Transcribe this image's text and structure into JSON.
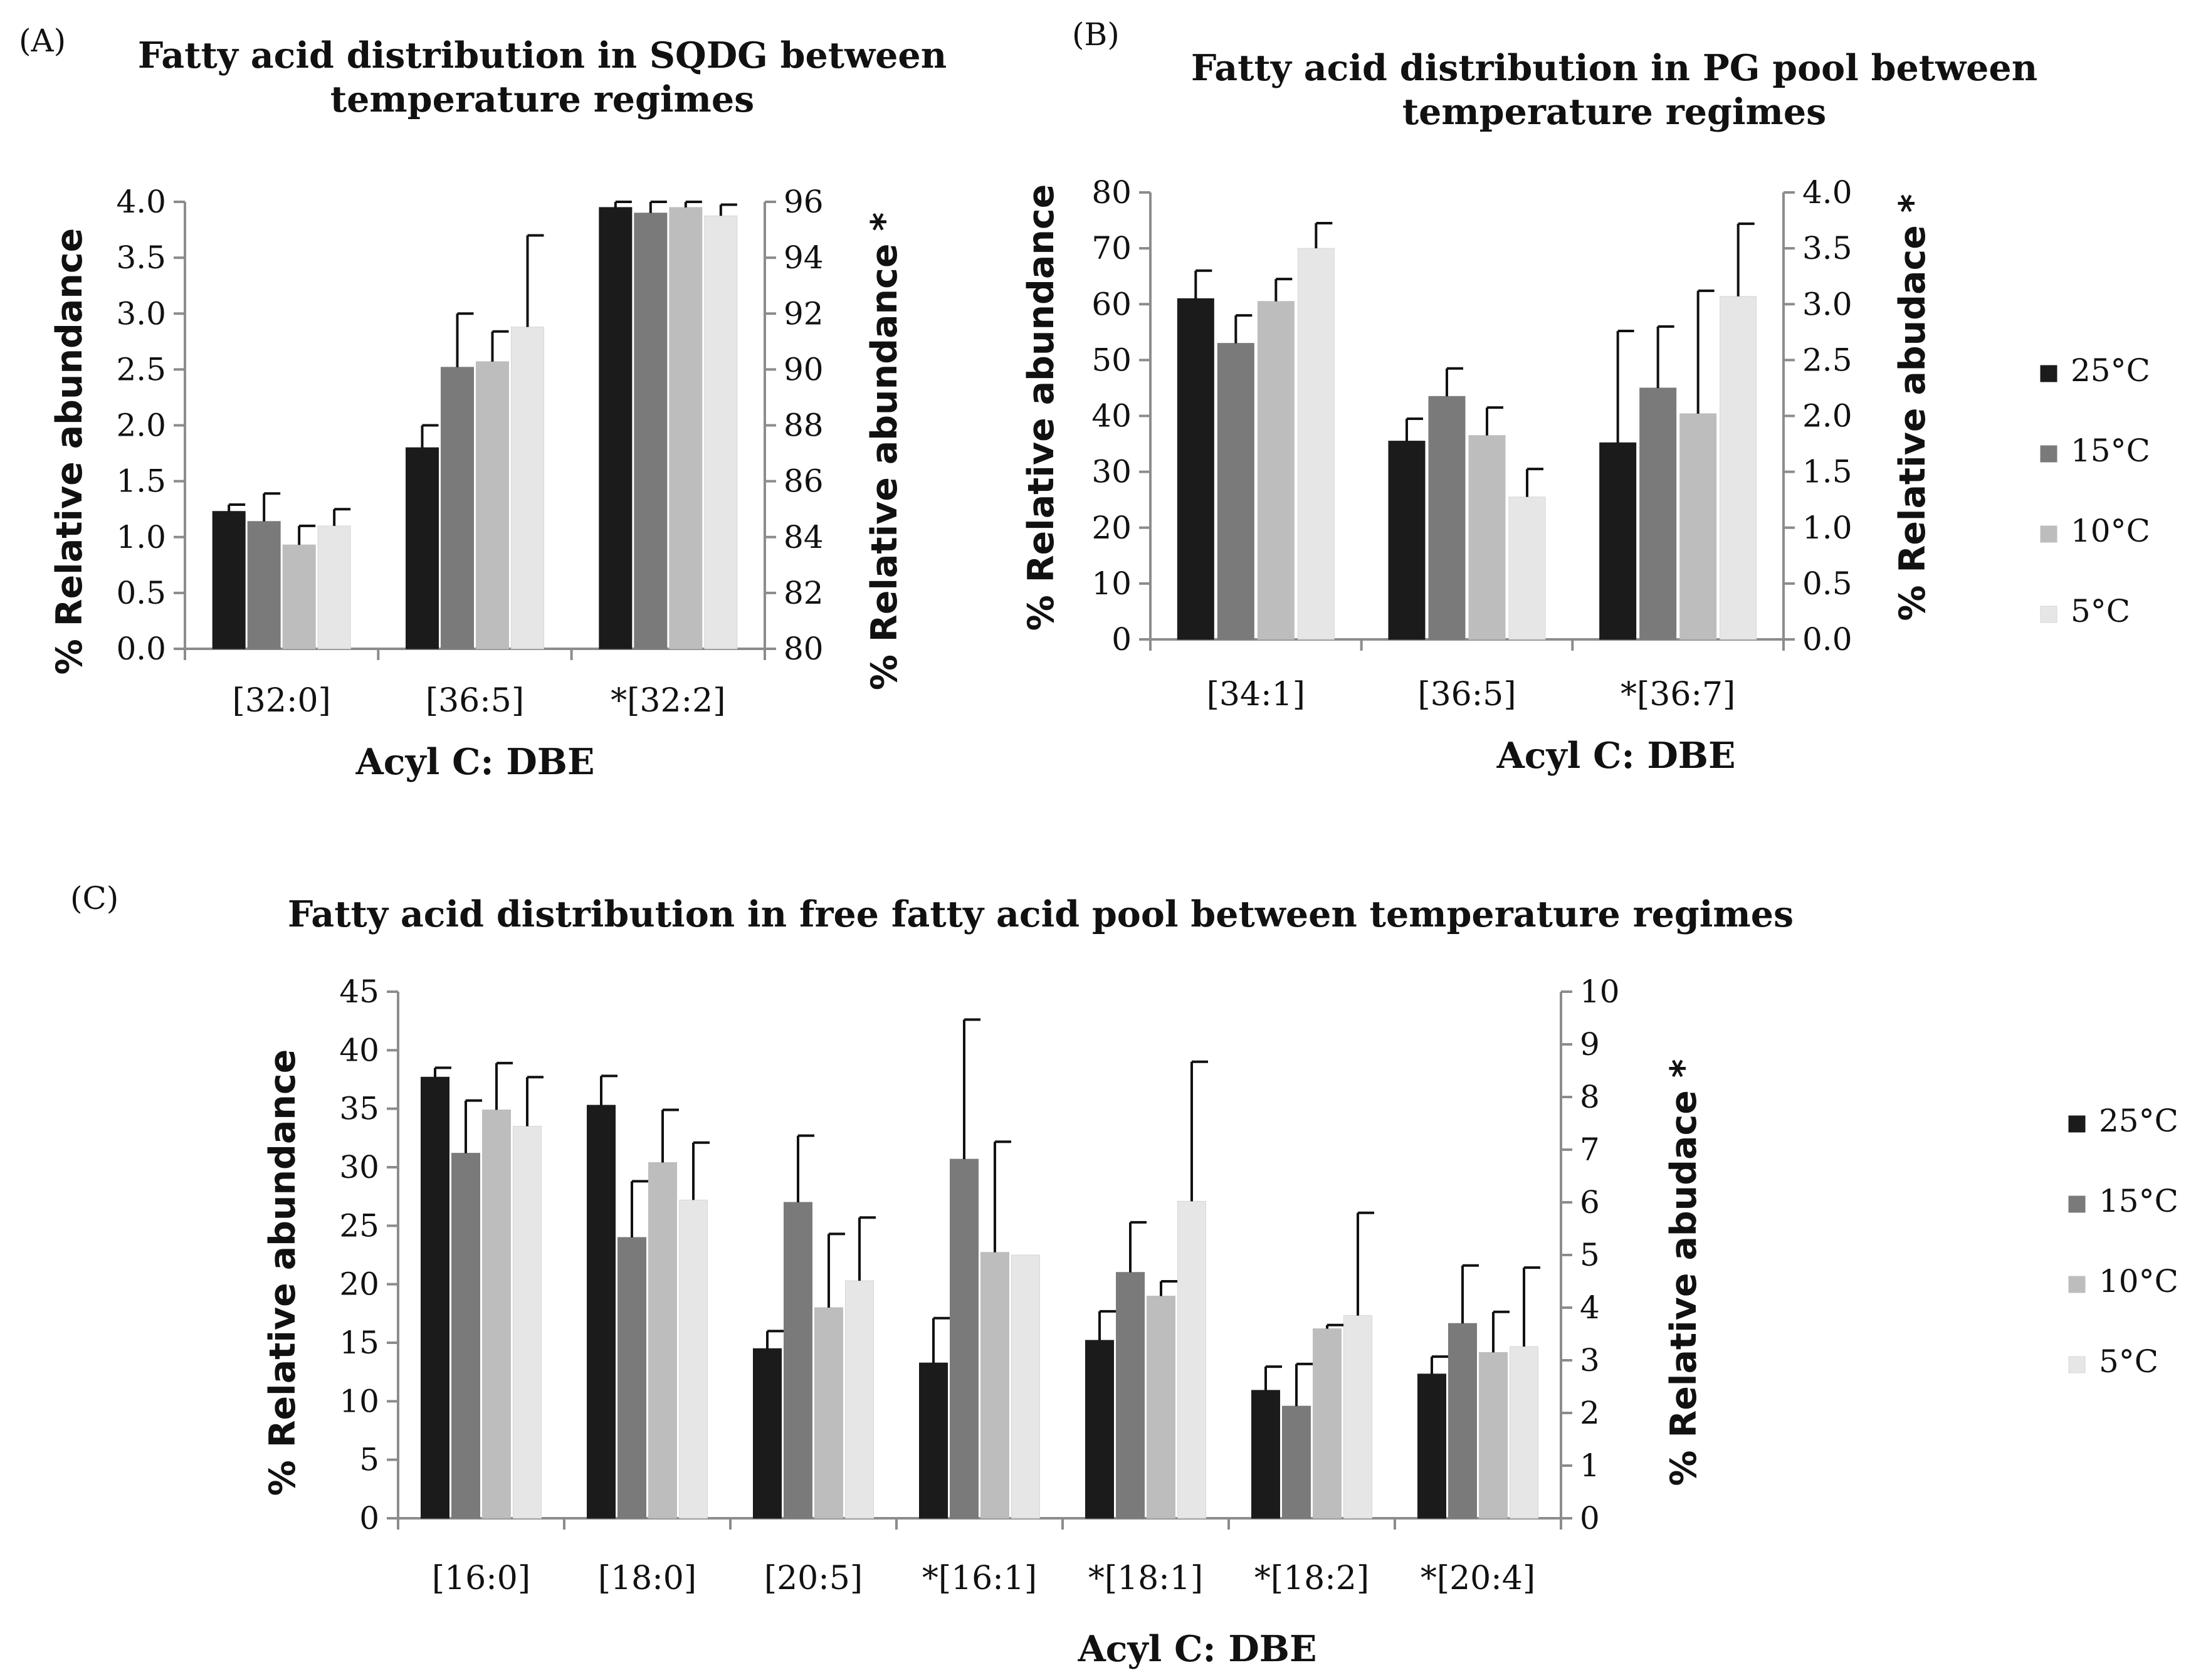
{
  "colors": {
    "25": "#1b1b1b",
    "15": "#7a7a7a",
    "10": "#bdbdbd",
    "5": "#e6e6e6",
    "axis": "#8c8c8c",
    "err": "#111111"
  },
  "chart_data": [
    {
      "id": "A",
      "panel_label": "(A)",
      "type": "bar",
      "title_lines": [
        "Fatty acid distribution in SQDG between",
        "temperature regimes"
      ],
      "xlabel": "Acyl C: DBE",
      "ylabel": "% Relative abundance",
      "ylabel_right": "% Relative abundance *",
      "ylim": [
        0,
        4.0
      ],
      "yticks": [
        "0.0",
        "0.5",
        "1.0",
        "1.5",
        "2.0",
        "2.5",
        "3.0",
        "3.5",
        "4.0"
      ],
      "ylim_right": [
        80,
        96
      ],
      "yticks_right": [
        "80",
        "82",
        "84",
        "86",
        "88",
        "90",
        "92",
        "94",
        "96"
      ],
      "categories": [
        "[32:0]",
        "[36:5]",
        "*[32:2]"
      ],
      "right_axis_categories": [
        2
      ],
      "series": [
        {
          "name": "25°C",
          "values": [
            1.23,
            1.8,
            95.8
          ],
          "errors": [
            0.06,
            0.2,
            0.2
          ]
        },
        {
          "name": "15°C",
          "values": [
            1.14,
            2.52,
            95.6
          ],
          "errors": [
            0.25,
            0.48,
            0.4
          ]
        },
        {
          "name": "10°C",
          "values": [
            0.93,
            2.57,
            95.8
          ],
          "errors": [
            0.17,
            0.27,
            0.2
          ]
        },
        {
          "name": "5°C",
          "values": [
            1.1,
            2.88,
            95.5
          ],
          "errors": [
            0.15,
            0.82,
            0.4
          ]
        }
      ]
    },
    {
      "id": "B",
      "panel_label": "(B)",
      "type": "bar",
      "title_lines": [
        "Fatty acid distribution in PG pool between",
        "temperature regimes"
      ],
      "xlabel": "Acyl C: DBE",
      "ylabel": "% Relative abundance",
      "ylabel_right": "% Relative abudace *",
      "ylim": [
        0,
        80
      ],
      "yticks": [
        "0",
        "10",
        "20",
        "30",
        "40",
        "50",
        "60",
        "70",
        "80"
      ],
      "ylim_right": [
        0,
        4.0
      ],
      "yticks_right": [
        "0.0",
        "0.5",
        "1.0",
        "1.5",
        "2.0",
        "2.5",
        "3.0",
        "3.5",
        "4.0"
      ],
      "categories": [
        "[34:1]",
        "[36:5]",
        "*[36:7]"
      ],
      "right_axis_categories": [
        2
      ],
      "series": [
        {
          "name": "25°C",
          "values": [
            61,
            35.5,
            1.76
          ],
          "errors": [
            5,
            4,
            1.0
          ]
        },
        {
          "name": "15°C",
          "values": [
            53,
            43.5,
            2.25
          ],
          "errors": [
            5,
            5,
            0.55
          ]
        },
        {
          "name": "10°C",
          "values": [
            60.5,
            36.5,
            2.02
          ],
          "errors": [
            4,
            5,
            1.1
          ]
        },
        {
          "name": "5°C",
          "values": [
            70,
            25.5,
            3.07
          ],
          "errors": [
            4.5,
            5,
            0.65
          ]
        }
      ]
    },
    {
      "id": "C",
      "panel_label": "(C)",
      "type": "bar",
      "title_lines": [
        "Fatty acid distribution in free fatty acid pool between temperature regimes"
      ],
      "xlabel": "Acyl C: DBE",
      "ylabel": "% Relative abundance",
      "ylabel_right": "% Relative abudace *",
      "ylim": [
        0,
        45
      ],
      "yticks": [
        "0",
        "5",
        "10",
        "15",
        "20",
        "25",
        "30",
        "35",
        "40",
        "45"
      ],
      "ylim_right": [
        0,
        10
      ],
      "yticks_right": [
        "0",
        "1",
        "2",
        "3",
        "4",
        "5",
        "6",
        "7",
        "8",
        "9",
        "10"
      ],
      "categories": [
        "[16:0]",
        "[18:0]",
        "[20:5]",
        "*[16:1]",
        "*[18:1]",
        "*[18:2]",
        "*[20:4]"
      ],
      "right_axis_categories": [
        3,
        4,
        5,
        6
      ],
      "series": [
        {
          "name": "25°C",
          "values": [
            37.7,
            35.3,
            14.5,
            2.95,
            3.38,
            2.43,
            2.74
          ],
          "errors": [
            0.8,
            2.5,
            1.5,
            0.85,
            0.55,
            0.45,
            0.33
          ]
        },
        {
          "name": "15°C",
          "values": [
            31.2,
            24,
            27,
            6.82,
            4.67,
            2.13,
            3.7
          ],
          "errors": [
            4.5,
            4.8,
            5.7,
            2.65,
            0.95,
            0.8,
            1.1
          ]
        },
        {
          "name": "10°C",
          "values": [
            34.9,
            30.4,
            18,
            5.05,
            4.22,
            3.6,
            3.15
          ],
          "errors": [
            4,
            4.5,
            6.3,
            2.1,
            0.28,
            0.07,
            0.77
          ]
        },
        {
          "name": "5°C",
          "values": [
            33.5,
            27.2,
            20.3,
            5.0,
            6.02,
            3.85,
            3.26
          ],
          "errors": [
            4.2,
            4.9,
            5.4,
            0.0,
            2.65,
            1.95,
            1.5
          ]
        }
      ]
    }
  ]
}
